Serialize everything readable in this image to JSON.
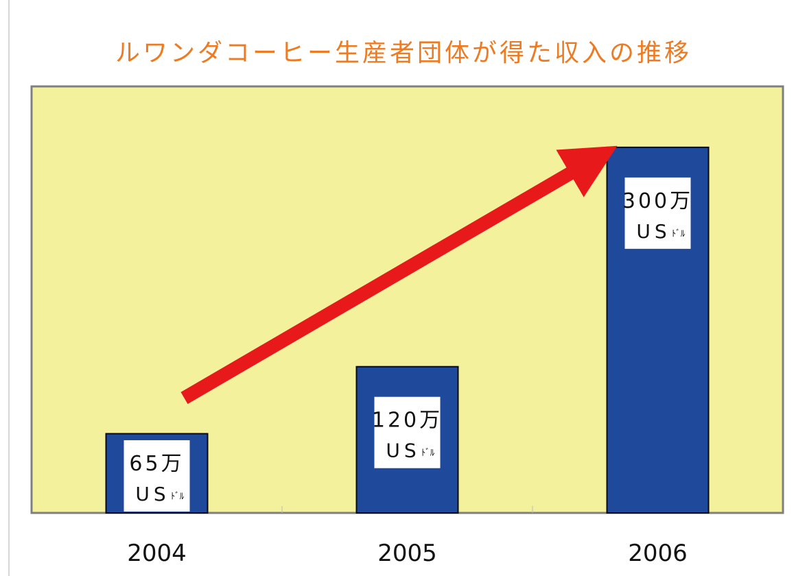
{
  "chart_data": {
    "type": "bar",
    "title": "ルワンダコーヒー生産者団体が得た収入の推移",
    "categories": [
      "2004",
      "2005",
      "2006"
    ],
    "values": [
      65,
      120,
      300
    ],
    "value_labels": [
      {
        "amount": "65万",
        "unit_main": "US",
        "unit_small": "ﾄﾞﾙ"
      },
      {
        "amount": "120万",
        "unit_main": "US",
        "unit_small": "ﾄﾞﾙ"
      },
      {
        "amount": "300万",
        "unit_main": "US",
        "unit_small": "ﾄﾞﾙ"
      }
    ],
    "ylim": [
      0,
      350
    ],
    "grid": false,
    "legend": "none",
    "trend_arrow": true
  },
  "colors": {
    "title": "#ee7b22",
    "plot_background": "#f3f19c",
    "plot_border": "#7f7f7f",
    "bar_fill": "#1f4a9c",
    "bar_stroke": "#0a0a0a",
    "arrow": "#e8191b",
    "label_box": "#ffffff"
  }
}
